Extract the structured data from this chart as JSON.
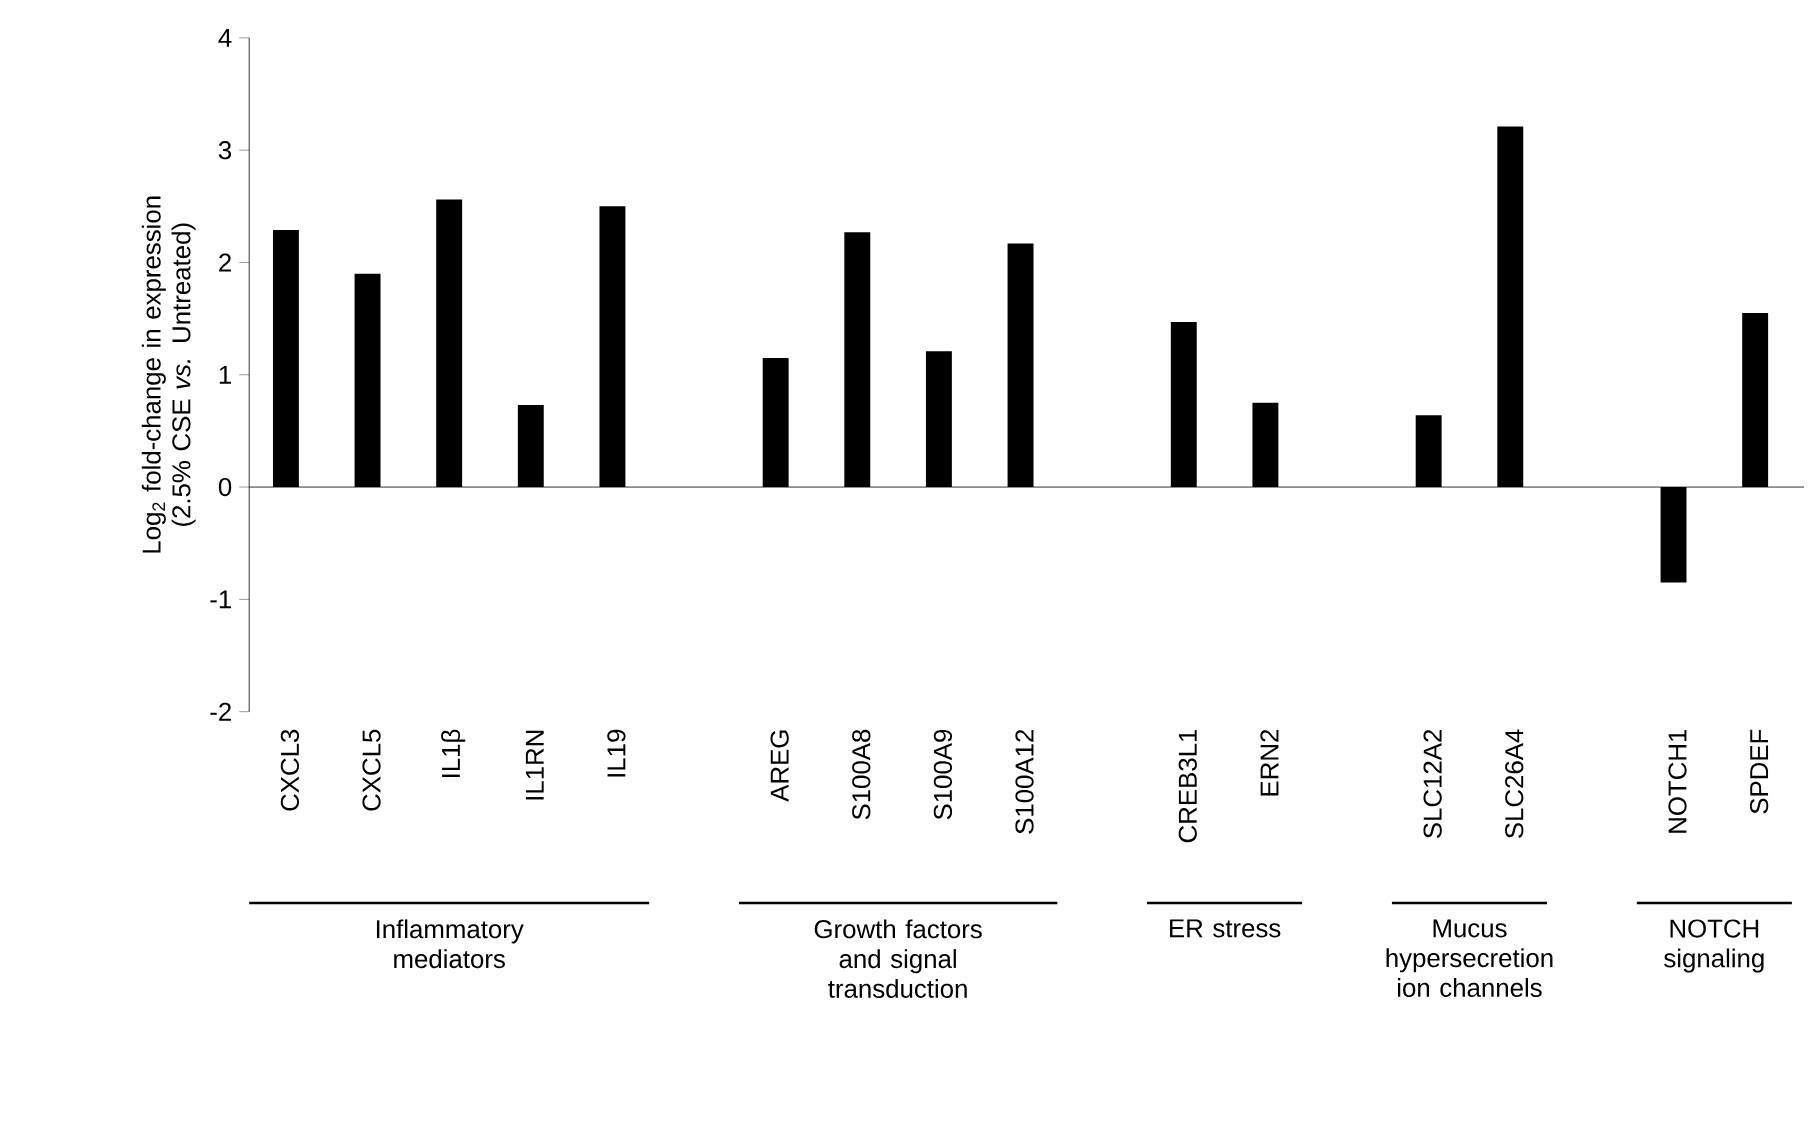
{
  "chart_data": {
    "type": "bar",
    "ylabel": "Log$_{2}$ fold-change in expression (2.5% CSE *vs.* Untreated)",
    "categories": [
      "CXCL3",
      "CXCL5",
      "IL1β",
      "IL1RN",
      "IL19",
      null,
      "AREG",
      "S100A8",
      "S100A9",
      "S100A12",
      null,
      "CREB3L1",
      "ERN2",
      null,
      "SLC12A2",
      "SLC26A4",
      null,
      "NOTCH1",
      "SPDEF"
    ],
    "values": [
      2.29,
      1.9,
      2.56,
      0.73,
      2.5,
      null,
      1.15,
      2.27,
      1.21,
      2.17,
      null,
      1.47,
      0.75,
      null,
      0.64,
      3.21,
      null,
      -0.85,
      1.55
    ],
    "color": "#000000",
    "ylim": [
      -2,
      4
    ],
    "yticks": [
      -2,
      -1,
      0,
      1,
      2,
      3,
      4
    ],
    "annotations": [
      "Inflammatory mediators",
      "Growth factors and signal transduction",
      "ER stress",
      "Mucus hypersecretion ion channels",
      "NOTCH signaling"
    ]
  }
}
